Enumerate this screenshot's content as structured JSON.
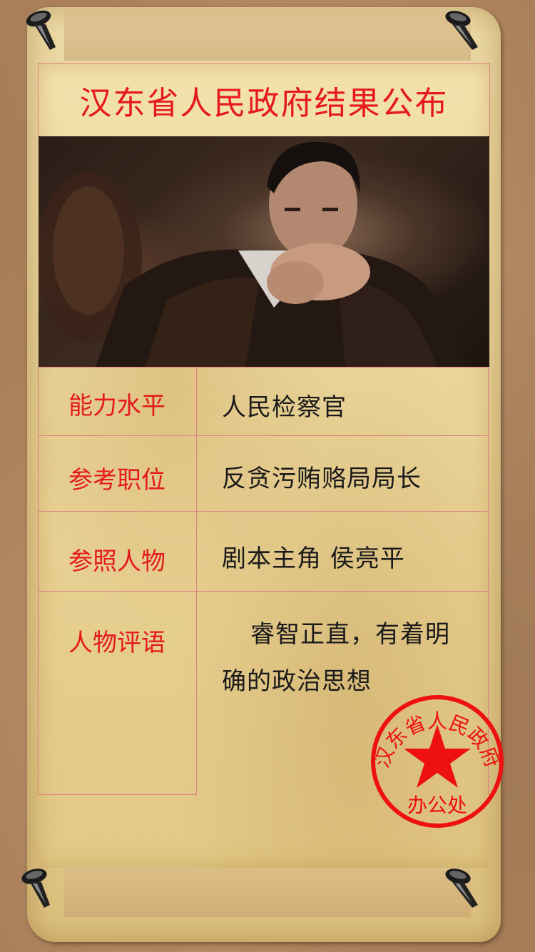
{
  "announcement": {
    "title": "汉东省人民政府结果公布"
  },
  "rows": [
    {
      "label": "能力水平",
      "value": "人民检察官"
    },
    {
      "label": "参考职位",
      "value": "反贪污贿赂局局长"
    },
    {
      "label": "参照人物",
      "value": "剧本主角  侯亮平"
    },
    {
      "label": "人物评语",
      "value": "睿智正直，有着明确的政治思想"
    }
  ],
  "seal": {
    "arc_text": "汉东省人民政府",
    "bottom_text": "办公处"
  },
  "colors": {
    "accent_red": "#e51a1a",
    "paper": "#ecd9a4",
    "background": "#b48a63"
  },
  "icons": [
    "pushpin-icon",
    "star-icon"
  ]
}
